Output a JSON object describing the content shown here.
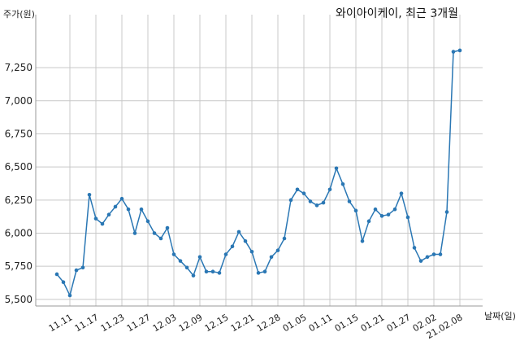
{
  "chart_data": {
    "type": "line",
    "title": "와이아이케이, 최근 3개월",
    "ylabel": "주가(원)",
    "xlabel": "날짜(일)",
    "ylim": [
      5450,
      7650
    ],
    "yticks": [
      5500,
      5750,
      6000,
      6250,
      6500,
      6750,
      7000,
      7250
    ],
    "ytick_labels": [
      "5,500",
      "5,750",
      "6,000",
      "6,250",
      "6,500",
      "6,750",
      "7,000",
      "7,250"
    ],
    "xtick_labels": [
      "11.11",
      "11.17",
      "11.23",
      "11.27",
      "12.03",
      "12.09",
      "12.15",
      "12.21",
      "12.28",
      "01.05",
      "01.11",
      "01.15",
      "01.21",
      "01.27",
      "02.02",
      "21.02.08"
    ],
    "xtick_index": [
      3,
      7,
      11,
      15,
      19,
      23,
      27,
      31,
      35,
      39,
      43,
      47,
      51,
      55,
      59,
      63
    ],
    "grid": true,
    "line_color": "#2a77b4",
    "series": [
      {
        "values": [
          5690,
          5630,
          5530,
          5720,
          5740,
          6290,
          6110,
          6070,
          6140,
          6200,
          6260,
          6180,
          6000,
          6180,
          6090,
          6000,
          5960,
          6040,
          5840,
          5790,
          5740,
          5680,
          5820,
          5710,
          5710,
          5700,
          5840,
          5900,
          6010,
          5940,
          5860,
          5700,
          5710,
          5820,
          5870,
          5960,
          6250,
          6330,
          6300,
          6240,
          6210,
          6230,
          6330,
          6490,
          6370,
          6240,
          6170,
          5940,
          6090,
          6180,
          6130,
          6140,
          6180,
          6300,
          6120,
          5890,
          5790,
          5820,
          5840,
          5840,
          6160,
          7370,
          7380
        ]
      }
    ]
  }
}
